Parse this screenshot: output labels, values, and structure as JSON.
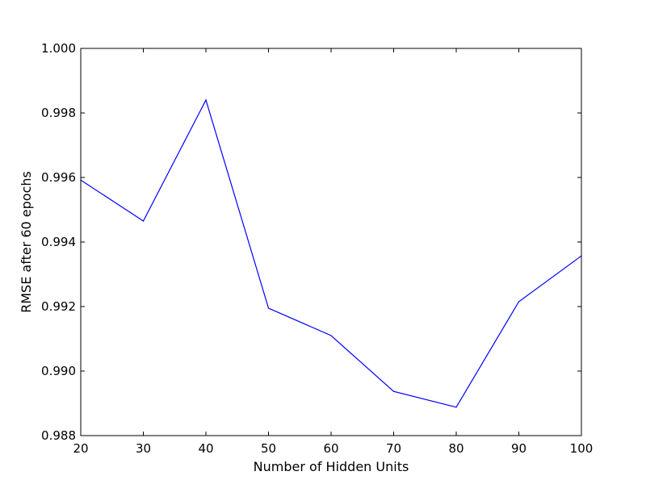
{
  "chart_data": {
    "type": "line",
    "title": "",
    "xlabel": "Number of Hidden Units",
    "ylabel": "RMSE after 60 epochs",
    "xlim": [
      20,
      100
    ],
    "ylim": [
      0.988,
      1.0
    ],
    "xticks": [
      20,
      30,
      40,
      50,
      60,
      70,
      80,
      90,
      100
    ],
    "xtick_labels": [
      "20",
      "30",
      "40",
      "50",
      "60",
      "70",
      "80",
      "90",
      "100"
    ],
    "yticks": [
      0.988,
      0.99,
      0.992,
      0.994,
      0.996,
      0.998,
      1.0
    ],
    "ytick_labels": [
      "0.988",
      "0.990",
      "0.992",
      "0.994",
      "0.996",
      "0.998",
      "1.000"
    ],
    "grid": false,
    "series": [
      {
        "color": "#0000ff",
        "x": [
          20,
          30,
          40,
          50,
          60,
          70,
          80,
          90,
          100
        ],
        "y": [
          0.99592,
          0.99465,
          0.9984,
          0.99195,
          0.9911,
          0.98937,
          0.98888,
          0.99215,
          0.99357
        ]
      }
    ]
  }
}
